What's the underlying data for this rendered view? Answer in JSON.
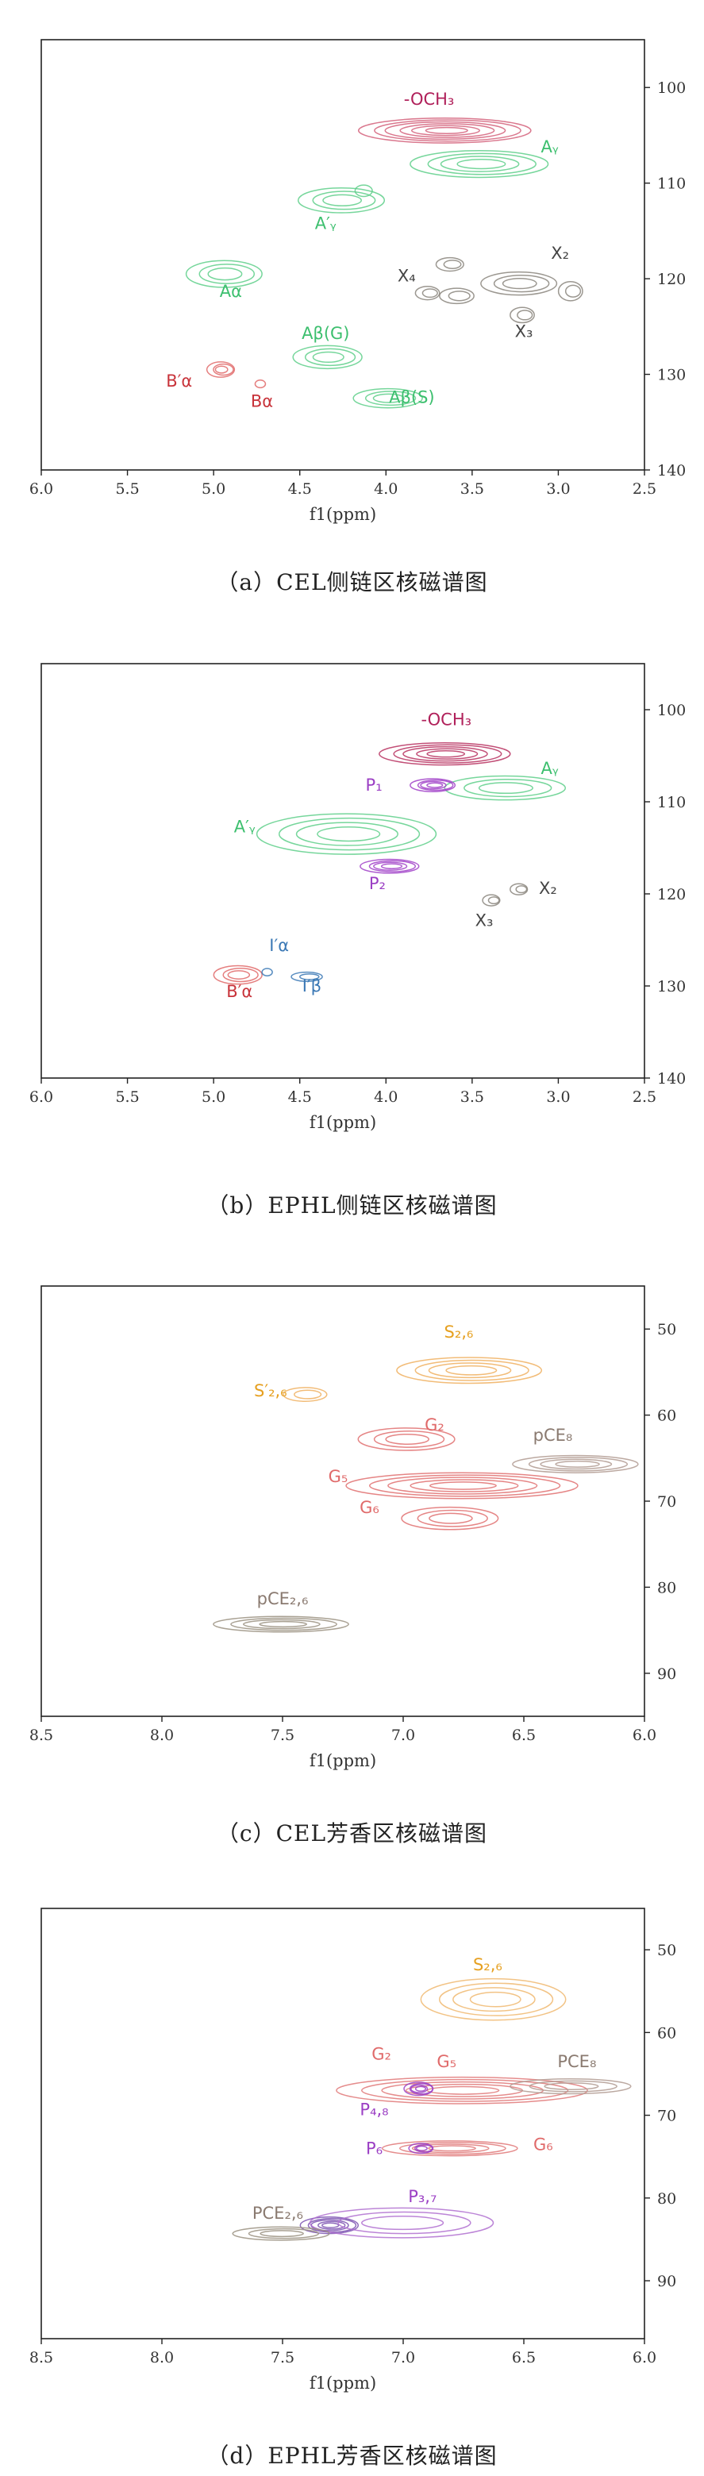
{
  "panels": [
    {
      "caption": "（a）CEL侧链区核磁谱图",
      "chart_data": {
        "type": "contour",
        "xlabel": "f1(ppm)",
        "xlim": [
          6.0,
          2.5
        ],
        "ylim": [
          140,
          95
        ],
        "x_ticks": [
          "6.0",
          "5.5",
          "5.0",
          "4.5",
          "4.0",
          "3.5",
          "3.0",
          "2.5"
        ],
        "y_ticks": [
          "100",
          "110",
          "120",
          "130",
          "140"
        ],
        "y_tick_values": [
          100,
          110,
          120,
          130,
          140
        ],
        "peaks": [
          {
            "x": 3.65,
            "y": 104.5,
            "rx": 0.5,
            "ry": 1.3,
            "color": "#d4607a",
            "n": 6
          },
          {
            "x": 3.45,
            "y": 108.0,
            "rx": 0.4,
            "ry": 1.4,
            "color": "#5ecf8a",
            "n": 4
          },
          {
            "x": 4.25,
            "y": 111.8,
            "rx": 0.25,
            "ry": 1.3,
            "color": "#5ecf8a",
            "n": 3
          },
          {
            "x": 4.12,
            "y": 110.8,
            "rx": 0.05,
            "ry": 0.6,
            "color": "#5ecf8a",
            "n": 1
          },
          {
            "x": 4.93,
            "y": 119.5,
            "rx": 0.22,
            "ry": 1.4,
            "color": "#5ecf8a",
            "n": 3
          },
          {
            "x": 3.62,
            "y": 118.5,
            "rx": 0.08,
            "ry": 0.7,
            "color": "#8a857c",
            "n": 2
          },
          {
            "x": 3.58,
            "y": 121.8,
            "rx": 0.1,
            "ry": 0.8,
            "color": "#8a857c",
            "n": 2
          },
          {
            "x": 3.22,
            "y": 120.5,
            "rx": 0.22,
            "ry": 1.2,
            "color": "#8a857c",
            "n": 3
          },
          {
            "x": 2.92,
            "y": 121.3,
            "rx": 0.07,
            "ry": 1.0,
            "color": "#8a857c",
            "n": 2
          },
          {
            "x": 3.2,
            "y": 123.8,
            "rx": 0.07,
            "ry": 0.8,
            "color": "#8a857c",
            "n": 2
          },
          {
            "x": 3.75,
            "y": 121.5,
            "rx": 0.07,
            "ry": 0.7,
            "color": "#8a857c",
            "n": 2
          },
          {
            "x": 4.33,
            "y": 128.2,
            "rx": 0.2,
            "ry": 1.2,
            "color": "#5ecf8a",
            "n": 3
          },
          {
            "x": 3.98,
            "y": 132.5,
            "rx": 0.2,
            "ry": 1.0,
            "color": "#5ecf8a",
            "n": 3
          },
          {
            "x": 4.95,
            "y": 129.5,
            "rx": 0.08,
            "ry": 0.8,
            "color": "#e06868",
            "n": 3
          },
          {
            "x": 4.72,
            "y": 131.0,
            "rx": 0.03,
            "ry": 0.4,
            "color": "#e06868",
            "n": 1
          }
        ],
        "labels": [
          {
            "text": "-OCH₃",
            "x": 3.75,
            "y": 101.8,
            "color": "#b0205a"
          },
          {
            "text": "Aᵧ",
            "x": 3.05,
            "y": 106.8,
            "color": "#3cbf6e"
          },
          {
            "text": "A′ᵧ",
            "x": 4.35,
            "y": 114.8,
            "color": "#3cbf6e"
          },
          {
            "text": "Aα",
            "x": 4.9,
            "y": 121.9,
            "color": "#3cbf6e"
          },
          {
            "text": "X₄",
            "x": 3.88,
            "y": 120.3,
            "color": "#444444"
          },
          {
            "text": "X₂",
            "x": 2.99,
            "y": 117.9,
            "color": "#444444"
          },
          {
            "text": "X₃",
            "x": 3.2,
            "y": 126.1,
            "color": "#444444"
          },
          {
            "text": "Aβ(G)",
            "x": 4.35,
            "y": 126.3,
            "color": "#3cbf6e"
          },
          {
            "text": "Aβ(S)",
            "x": 3.85,
            "y": 133.0,
            "color": "#3cbf6e"
          },
          {
            "text": "B′α",
            "x": 5.2,
            "y": 131.3,
            "color": "#c8333a"
          },
          {
            "text": "Bα",
            "x": 4.72,
            "y": 133.4,
            "color": "#c8333a"
          }
        ]
      }
    },
    {
      "caption": "（b）EPHL侧链区核磁谱图",
      "chart_data": {
        "type": "contour",
        "xlabel": "f1(ppm)",
        "xlim": [
          6.0,
          2.5
        ],
        "ylim": [
          140,
          95
        ],
        "x_ticks": [
          "6.0",
          "5.5",
          "5.0",
          "4.5",
          "4.0",
          "3.5",
          "3.0",
          "2.5"
        ],
        "y_ticks": [
          "100",
          "110",
          "120",
          "130",
          "140"
        ],
        "y_tick_values": [
          100,
          110,
          120,
          130,
          140
        ],
        "peaks": [
          {
            "x": 3.65,
            "y": 104.8,
            "rx": 0.38,
            "ry": 1.2,
            "color": "#b7305f",
            "n": 5
          },
          {
            "x": 3.3,
            "y": 108.5,
            "rx": 0.35,
            "ry": 1.3,
            "color": "#5ecf8a",
            "n": 3
          },
          {
            "x": 4.22,
            "y": 113.5,
            "rx": 0.52,
            "ry": 2.2,
            "color": "#5ecf8a",
            "n": 4
          },
          {
            "x": 3.72,
            "y": 108.2,
            "rx": 0.13,
            "ry": 0.7,
            "color": "#a040c8",
            "n": 4
          },
          {
            "x": 3.97,
            "y": 117.0,
            "rx": 0.17,
            "ry": 0.75,
            "color": "#a040c8",
            "n": 4
          },
          {
            "x": 3.38,
            "y": 120.7,
            "rx": 0.05,
            "ry": 0.6,
            "color": "#8a857c",
            "n": 2
          },
          {
            "x": 3.22,
            "y": 119.5,
            "rx": 0.05,
            "ry": 0.6,
            "color": "#8a857c",
            "n": 2
          },
          {
            "x": 4.85,
            "y": 128.8,
            "rx": 0.14,
            "ry": 1.0,
            "color": "#e06868",
            "n": 3
          },
          {
            "x": 4.45,
            "y": 129.0,
            "rx": 0.09,
            "ry": 0.5,
            "color": "#3a78b5",
            "n": 2
          },
          {
            "x": 4.68,
            "y": 128.5,
            "rx": 0.03,
            "ry": 0.4,
            "color": "#3a78b5",
            "n": 1
          }
        ],
        "labels": [
          {
            "text": "-OCH₃",
            "x": 3.65,
            "y": 101.7,
            "color": "#b0205a"
          },
          {
            "text": "Aᵧ",
            "x": 3.05,
            "y": 107.0,
            "color": "#3cbf6e"
          },
          {
            "text": "P₁",
            "x": 4.07,
            "y": 108.8,
            "color": "#9b3fc4"
          },
          {
            "text": "A′ᵧ",
            "x": 4.82,
            "y": 113.3,
            "color": "#3cbf6e"
          },
          {
            "text": "P₂",
            "x": 4.05,
            "y": 119.5,
            "color": "#9b3fc4"
          },
          {
            "text": "X₂",
            "x": 3.06,
            "y": 120.0,
            "color": "#444444"
          },
          {
            "text": "X₃",
            "x": 3.43,
            "y": 123.5,
            "color": "#444444"
          },
          {
            "text": "I′α",
            "x": 4.62,
            "y": 126.2,
            "color": "#3a78b5"
          },
          {
            "text": "I′β",
            "x": 4.43,
            "y": 130.6,
            "color": "#3a78b5"
          },
          {
            "text": "B′α",
            "x": 4.85,
            "y": 131.2,
            "color": "#c8333a"
          }
        ]
      }
    },
    {
      "caption": "（c）CEL芳香区核磁谱图",
      "chart_data": {
        "type": "contour",
        "xlabel": "f1(ppm)",
        "xlim": [
          8.5,
          6.0
        ],
        "ylim": [
          95,
          45
        ],
        "x_ticks": [
          "8.5",
          "8.0",
          "7.5",
          "7.0",
          "6.5",
          "6.0"
        ],
        "y_ticks": [
          "50",
          "60",
          "70",
          "80",
          "90"
        ],
        "y_tick_values": [
          50,
          60,
          70,
          80,
          90
        ],
        "peaks": [
          {
            "x": 6.72,
            "y": 54.8,
            "rx": 0.3,
            "ry": 1.5,
            "color": "#f0b060",
            "n": 4
          },
          {
            "x": 7.4,
            "y": 57.6,
            "rx": 0.09,
            "ry": 0.8,
            "color": "#f0b060",
            "n": 2
          },
          {
            "x": 6.98,
            "y": 62.8,
            "rx": 0.2,
            "ry": 1.3,
            "color": "#e07070",
            "n": 3
          },
          {
            "x": 6.75,
            "y": 68.2,
            "rx": 0.48,
            "ry": 1.5,
            "color": "#e07070",
            "n": 5
          },
          {
            "x": 6.28,
            "y": 65.7,
            "rx": 0.26,
            "ry": 1.0,
            "color": "#b09a90",
            "n": 4
          },
          {
            "x": 6.8,
            "y": 72.0,
            "rx": 0.2,
            "ry": 1.3,
            "color": "#e07070",
            "n": 3
          },
          {
            "x": 7.5,
            "y": 84.3,
            "rx": 0.28,
            "ry": 0.9,
            "color": "#9a9080",
            "n": 4
          }
        ],
        "labels": [
          {
            "text": "S₂,₆",
            "x": 6.77,
            "y": 51.0,
            "color": "#e6a020"
          },
          {
            "text": "S′₂,₆",
            "x": 7.55,
            "y": 57.8,
            "color": "#e6a020"
          },
          {
            "text": "G₂",
            "x": 6.87,
            "y": 61.8,
            "color": "#e06a6a"
          },
          {
            "text": "pCE₈",
            "x": 6.38,
            "y": 63.0,
            "color": "#8a7a70"
          },
          {
            "text": "G₅",
            "x": 7.27,
            "y": 67.8,
            "color": "#e06a6a"
          },
          {
            "text": "G₆",
            "x": 7.14,
            "y": 71.4,
            "color": "#e06a6a"
          },
          {
            "text": "pCE₂,₆",
            "x": 7.5,
            "y": 82.0,
            "color": "#8a7a70"
          }
        ]
      }
    },
    {
      "caption": "（d）EPHL芳香区核磁谱图",
      "chart_data": {
        "type": "contour",
        "xlabel": "f1(ppm)",
        "xlim": [
          8.5,
          6.0
        ],
        "ylim": [
          97,
          45
        ],
        "x_ticks": [
          "8.5",
          "8.0",
          "7.5",
          "7.0",
          "6.5",
          "6.0"
        ],
        "y_ticks": [
          "50",
          "60",
          "70",
          "80",
          "90"
        ],
        "y_tick_values": [
          50,
          60,
          70,
          80,
          90
        ],
        "peaks": [
          {
            "x": 6.62,
            "y": 56.0,
            "rx": 0.3,
            "ry": 2.5,
            "color": "#f0b870",
            "n": 4
          },
          {
            "x": 6.75,
            "y": 67.0,
            "rx": 0.52,
            "ry": 1.6,
            "color": "#e07878",
            "n": 5
          },
          {
            "x": 6.3,
            "y": 66.5,
            "rx": 0.25,
            "ry": 0.9,
            "color": "#b09a90",
            "n": 3
          },
          {
            "x": 6.93,
            "y": 66.8,
            "rx": 0.06,
            "ry": 0.8,
            "color": "#9b3fc4",
            "n": 4
          },
          {
            "x": 6.8,
            "y": 74.0,
            "rx": 0.28,
            "ry": 0.9,
            "color": "#e07878",
            "n": 4
          },
          {
            "x": 6.92,
            "y": 74.0,
            "rx": 0.05,
            "ry": 0.6,
            "color": "#9b3fc4",
            "n": 3
          },
          {
            "x": 7.3,
            "y": 83.3,
            "rx": 0.12,
            "ry": 1.0,
            "color": "#7a50b0",
            "n": 5
          },
          {
            "x": 7.0,
            "y": 83.0,
            "rx": 0.38,
            "ry": 1.8,
            "color": "#b070d0",
            "n": 3
          },
          {
            "x": 7.5,
            "y": 84.3,
            "rx": 0.2,
            "ry": 0.8,
            "color": "#9a9080",
            "n": 3
          }
        ],
        "labels": [
          {
            "text": "S₂,₆",
            "x": 6.65,
            "y": 52.5,
            "color": "#e6a020"
          },
          {
            "text": "G₂",
            "x": 7.09,
            "y": 63.3,
            "color": "#e06a6a"
          },
          {
            "text": "G₅",
            "x": 6.82,
            "y": 64.2,
            "color": "#e06a6a"
          },
          {
            "text": "PCE₈",
            "x": 6.28,
            "y": 64.2,
            "color": "#8a7a70"
          },
          {
            "text": "P₄,₈",
            "x": 7.12,
            "y": 70.0,
            "color": "#9b3fc4"
          },
          {
            "text": "P₆",
            "x": 7.12,
            "y": 74.7,
            "color": "#9b3fc4"
          },
          {
            "text": "G₆",
            "x": 6.42,
            "y": 74.2,
            "color": "#e06a6a"
          },
          {
            "text": "P₃,₇",
            "x": 6.92,
            "y": 80.5,
            "color": "#9b3fc4"
          },
          {
            "text": "PCE₂,₆",
            "x": 7.52,
            "y": 82.5,
            "color": "#8a7a70"
          }
        ]
      }
    }
  ]
}
